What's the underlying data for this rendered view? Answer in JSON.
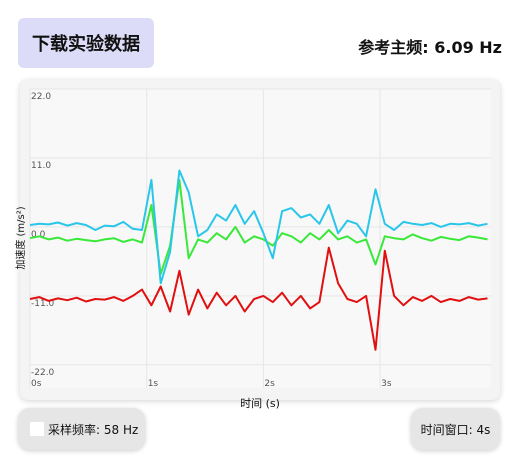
{
  "header": {
    "download_button": "下载实验数据",
    "reference_frequency": "参考主频: 6.09 Hz"
  },
  "chart_data": {
    "type": "line",
    "x_label": "时间 (s)",
    "y_label": "加速度 (m/s²)",
    "x": [
      0.0,
      0.08,
      0.16,
      0.24,
      0.32,
      0.4,
      0.48,
      0.56,
      0.64,
      0.72,
      0.8,
      0.88,
      0.96,
      1.04,
      1.12,
      1.2,
      1.28,
      1.36,
      1.44,
      1.52,
      1.6,
      1.68,
      1.76,
      1.84,
      1.92,
      2.0,
      2.08,
      2.16,
      2.24,
      2.32,
      2.4,
      2.48,
      2.56,
      2.64,
      2.72,
      2.8,
      2.88,
      2.96,
      3.04,
      3.12,
      3.2,
      3.28,
      3.36,
      3.44,
      3.52,
      3.6,
      3.68,
      3.76,
      3.84,
      3.92
    ],
    "series": [
      {
        "color": "#e01010",
        "values": [
          -11.5,
          -11.2,
          -11.8,
          -11.4,
          -11.7,
          -11.3,
          -11.9,
          -11.5,
          -11.6,
          -11.2,
          -11.8,
          -11.0,
          -10.0,
          -12.5,
          -9.5,
          -13.5,
          -7.0,
          -14.0,
          -10.0,
          -13.0,
          -10.5,
          -12.5,
          -11.0,
          -13.5,
          -11.5,
          -11.0,
          -12.0,
          -10.5,
          -12.5,
          -11.0,
          -13.0,
          -12.0,
          -3.3,
          -9.0,
          -11.5,
          -12.0,
          -11.0,
          -19.6,
          -3.8,
          -11.0,
          -12.5,
          -11.2,
          -11.8,
          -11.0,
          -12.0,
          -11.5,
          -11.8,
          -11.2,
          -11.6,
          -11.4
        ]
      },
      {
        "color": "#3ae83a",
        "values": [
          -1.8,
          -1.5,
          -2.0,
          -1.7,
          -2.2,
          -1.9,
          -2.1,
          -2.3,
          -2.0,
          -1.8,
          -2.4,
          -2.0,
          -2.5,
          3.5,
          -7.5,
          -3.0,
          7.5,
          -5.0,
          -2.0,
          -2.5,
          -1.0,
          -2.0,
          0.0,
          -2.5,
          -1.5,
          -2.0,
          -3.0,
          -1.0,
          -1.5,
          -2.5,
          -1.0,
          -2.0,
          -0.5,
          -2.0,
          -1.5,
          -2.5,
          -2.0,
          -6.0,
          -1.5,
          -1.8,
          -2.0,
          -1.2,
          -1.8,
          -2.2,
          -1.6,
          -1.9,
          -2.1,
          -1.5,
          -1.7,
          -2.0
        ]
      },
      {
        "color": "#2ac6ea",
        "values": [
          0.3,
          0.5,
          0.4,
          0.7,
          0.2,
          0.6,
          0.3,
          -0.5,
          0.2,
          0.1,
          0.8,
          -0.3,
          -0.5,
          7.5,
          -9.0,
          -4.0,
          9.0,
          5.5,
          -1.5,
          -0.5,
          2.0,
          1.0,
          3.5,
          0.5,
          2.5,
          -1.0,
          -5.0,
          2.5,
          3.0,
          1.5,
          2.0,
          0.5,
          3.5,
          -1.0,
          1.0,
          0.5,
          -1.5,
          6.0,
          0.5,
          -0.5,
          0.8,
          0.5,
          0.3,
          0.6,
          0.0,
          0.5,
          0.4,
          0.6,
          0.2,
          0.5
        ]
      }
    ],
    "xlim": [
      0,
      3.95
    ],
    "xticks": [
      {
        "value": 0,
        "label": "0s"
      },
      {
        "value": 1,
        "label": "1s"
      },
      {
        "value": 2,
        "label": "2s"
      },
      {
        "value": 3,
        "label": "3s"
      }
    ],
    "ylim": [
      -25.7,
      22
    ],
    "yticks": [
      {
        "value": 22,
        "label": "22.0"
      },
      {
        "value": 11,
        "label": "11.0"
      },
      {
        "value": 0,
        "label": "0.0"
      },
      {
        "value": -11,
        "label": "-11.0"
      },
      {
        "value": -22,
        "label": "-22.0"
      }
    ],
    "grid": true
  },
  "footer": {
    "sample_rate": "采样频率: 58 Hz",
    "time_window": "时间窗口: 4s"
  }
}
